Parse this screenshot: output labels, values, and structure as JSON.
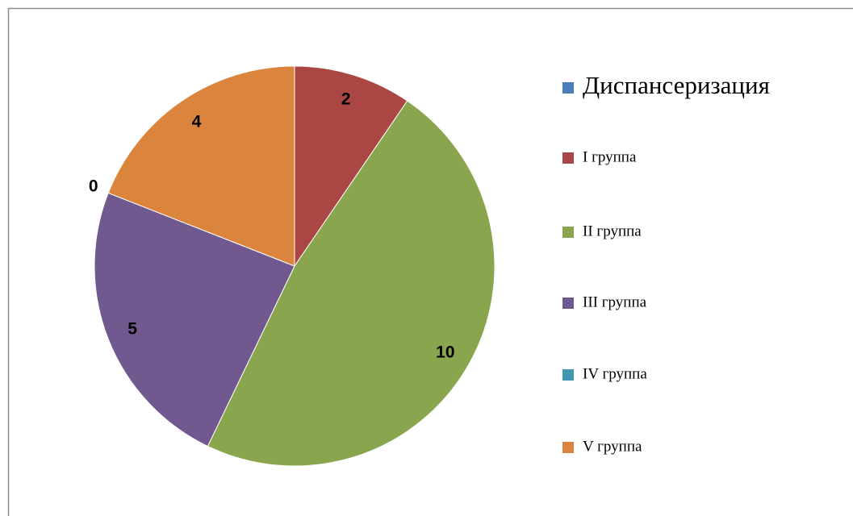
{
  "chart_data": {
    "type": "pie",
    "categories": [
      "Диспансеризация",
      "I группа",
      "II группа",
      "III  группа",
      "IV группа",
      "V группа"
    ],
    "values": [
      null,
      2,
      10,
      5,
      0,
      4
    ],
    "colors": [
      "#4a7ebb",
      "#aa4643",
      "#89a54e",
      "#71588f",
      "#4198af",
      "#db843d"
    ],
    "legend": "right"
  }
}
